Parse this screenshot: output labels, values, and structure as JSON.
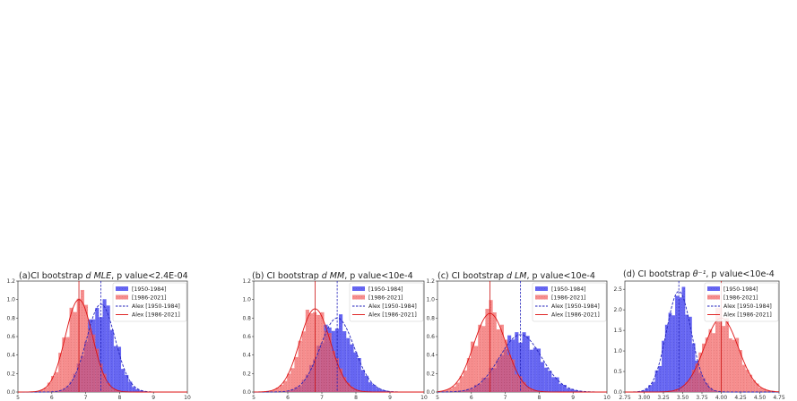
{
  "chart_data": [
    {
      "type": "bar",
      "title": "(a)CI bootstrap d MLE, p value<2.4E-04",
      "title_parts": [
        "(a)CI bootstrap ",
        "d MLE",
        ", p value<2.4E-04"
      ],
      "xlim": [
        5,
        10
      ],
      "ylim": [
        0,
        1.2
      ],
      "xticks": [
        "5",
        "6",
        "7",
        "8",
        "9",
        "10"
      ],
      "yticks": [
        "0.0",
        "0.2",
        "0.4",
        "0.6",
        "0.8",
        "1.0",
        "1.2"
      ],
      "legend": [
        "[1950-1984]",
        "[1986-2021]",
        "Alex [1950-1984]",
        "Alex [1986-2021]"
      ],
      "legend_position": "top-right",
      "series": [
        {
          "name": "[1950-1984]",
          "color": "#4b4bf0",
          "mean": 7.45,
          "sd": 0.42,
          "peak": 0.95,
          "vline": 7.45
        },
        {
          "name": "[1986-2021]",
          "color": "#f25c5c",
          "mean": 6.8,
          "sd": 0.4,
          "peak": 1.0,
          "vline": 6.8
        }
      ]
    },
    {
      "type": "bar",
      "title": "(b) CI bootstrap d MM, p value<10e-4",
      "title_parts": [
        "(b) CI bootstrap ",
        "d MM",
        ", p value<10e-4"
      ],
      "xlim": [
        5,
        10
      ],
      "ylim": [
        0,
        1.2
      ],
      "xticks": [
        "5",
        "6",
        "7",
        "8",
        "9",
        "10"
      ],
      "yticks": [
        "0.0",
        "0.2",
        "0.4",
        "0.6",
        "0.8",
        "1.0",
        "1.2"
      ],
      "legend": [
        "[1950-1984]",
        "[1986-2021]",
        "Alex [1950-1984]",
        "Alex [1986-2021]"
      ],
      "legend_position": "top-right",
      "series": [
        {
          "name": "[1950-1984]",
          "color": "#4b4bf0",
          "mean": 7.45,
          "sd": 0.5,
          "peak": 0.8,
          "vline": 7.45
        },
        {
          "name": "[1986-2021]",
          "color": "#f25c5c",
          "mean": 6.8,
          "sd": 0.45,
          "peak": 0.9,
          "vline": 6.8
        }
      ]
    },
    {
      "type": "bar",
      "title": "(c)  CI bootstrap d LM, p value<10e-4",
      "title_parts": [
        "(c)  CI bootstrap ",
        "d LM",
        ", p value<10e-4"
      ],
      "xlim": [
        5,
        10
      ],
      "ylim": [
        0,
        1.2
      ],
      "xticks": [
        "5",
        "6",
        "7",
        "8",
        "9",
        "10"
      ],
      "yticks": [
        "0.0",
        "0.2",
        "0.4",
        "0.6",
        "0.8",
        "1.0",
        "1.2"
      ],
      "legend": [
        "[1950-1984]",
        "[1986-2021]",
        "Alex [1950-1984]",
        "Alex [1986-2021]"
      ],
      "legend_position": "top-right",
      "series": [
        {
          "name": "[1950-1984]",
          "color": "#4b4bf0",
          "mean": 7.45,
          "sd": 0.62,
          "peak": 0.62,
          "vline": 7.45
        },
        {
          "name": "[1986-2021]",
          "color": "#f25c5c",
          "mean": 6.55,
          "sd": 0.48,
          "peak": 0.85,
          "vline": 6.55
        }
      ]
    },
    {
      "type": "bar",
      "title": "(d)   CI bootstrap θ⁻¹, p value<10e-4",
      "title_parts": [
        "(d)   CI bootstrap ",
        "θ⁻¹",
        ", p value<10e-4"
      ],
      "xlim": [
        2.75,
        4.75
      ],
      "ylim": [
        0,
        2.7
      ],
      "xticks": [
        "2.75",
        "3.00",
        "3.25",
        "3.50",
        "3.75",
        "4.00",
        "4.25",
        "4.50",
        "4.75"
      ],
      "yticks": [
        "0.0",
        "0.5",
        "1.0",
        "1.5",
        "2.0",
        "2.5"
      ],
      "legend": [
        "[1950-1984]",
        "[1986-2021]",
        "Alex [1950-1984]",
        "Alex [1986-2021]"
      ],
      "legend_position": "top-right",
      "series": [
        {
          "name": "[1950-1984]",
          "color": "#4b4bf0",
          "mean": 3.45,
          "sd": 0.16,
          "peak": 2.45,
          "vline": 3.45
        },
        {
          "name": "[1986-2021]",
          "color": "#f25c5c",
          "mean": 4.0,
          "sd": 0.22,
          "peak": 1.8,
          "vline": 4.0
        }
      ]
    }
  ]
}
